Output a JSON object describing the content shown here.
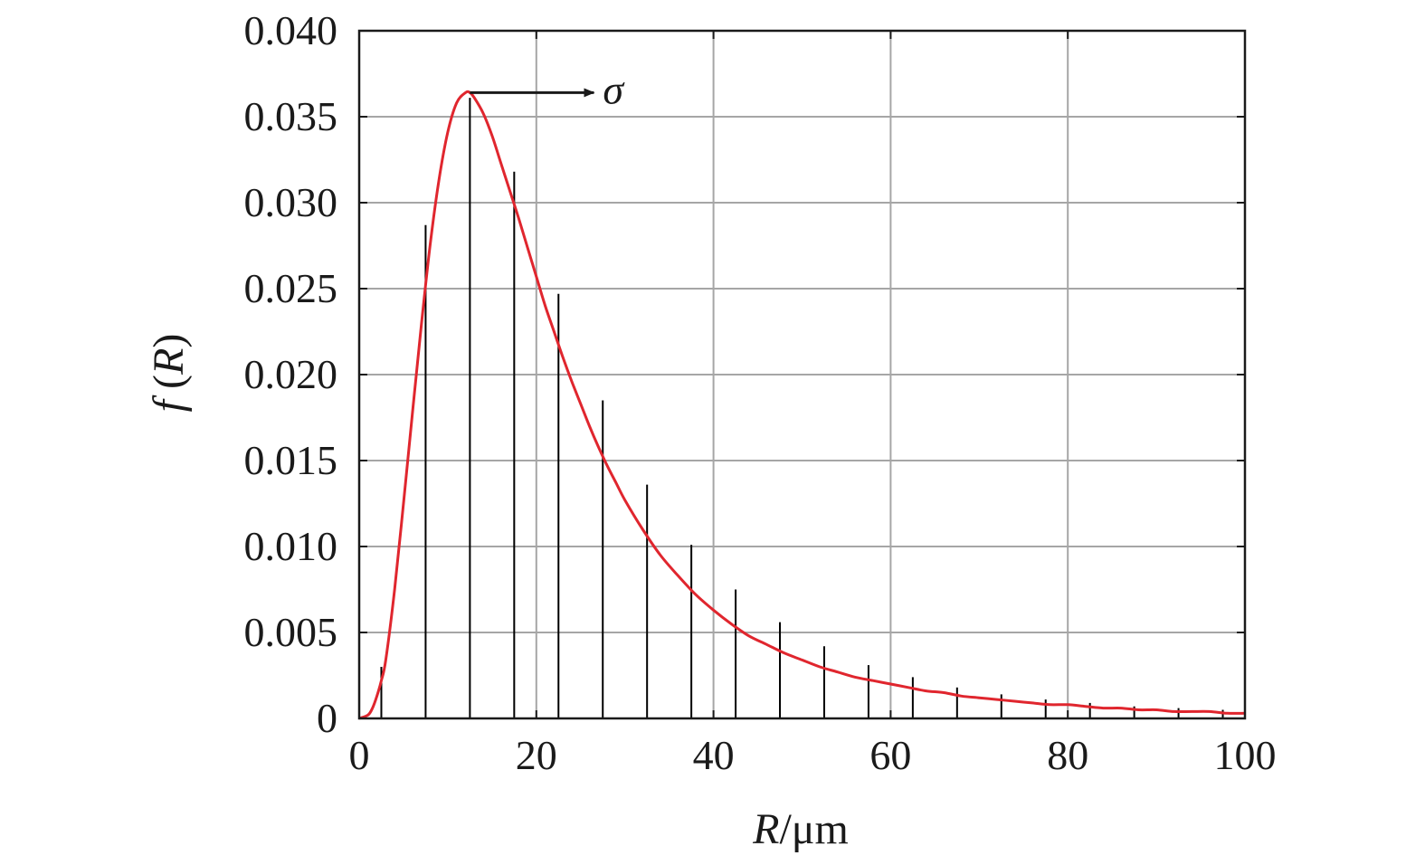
{
  "chart_data": {
    "type": "line",
    "title": "",
    "xlabel": {
      "var": "R",
      "unit": "/μm"
    },
    "ylabel": {
      "func": "f",
      "arg": "R",
      "open": " (",
      "close": ")"
    },
    "xlim": [
      0,
      100
    ],
    "ylim": [
      0,
      0.04
    ],
    "x_ticks": [
      0,
      20,
      40,
      60,
      80,
      100
    ],
    "x_tick_labels": [
      "0",
      "20",
      "40",
      "60",
      "80",
      "100"
    ],
    "y_ticks": [
      0,
      0.005,
      0.01,
      0.015,
      0.02,
      0.025,
      0.03,
      0.035,
      0.04
    ],
    "y_tick_labels": [
      "0",
      "0.005",
      "0.010",
      "0.015",
      "0.020",
      "0.025",
      "0.030",
      "0.035",
      "0.040"
    ],
    "grid": true,
    "legend": "none",
    "series": [
      {
        "kind": "curve",
        "color": "#e0262e",
        "x": [
          0,
          1,
          1.5,
          2,
          2.5,
          3,
          4,
          5,
          6,
          7,
          8,
          9,
          10,
          11,
          12,
          12.5,
          13,
          14,
          15,
          16,
          17,
          18,
          19,
          20,
          21,
          22,
          23,
          24,
          25,
          26,
          27,
          28,
          29,
          30,
          32,
          34,
          36,
          38,
          40,
          42,
          44,
          46,
          48,
          50,
          52,
          54,
          56,
          58,
          60,
          62,
          64,
          66,
          68,
          70,
          72,
          74,
          76,
          78,
          80,
          82,
          84,
          86,
          88,
          90,
          92,
          94,
          96,
          98,
          100
        ],
        "y": [
          0,
          0.0002,
          0.0006,
          0.0013,
          0.0022,
          0.0034,
          0.0075,
          0.0125,
          0.0177,
          0.0228,
          0.0275,
          0.0313,
          0.0341,
          0.0358,
          0.0364,
          0.0364,
          0.0361,
          0.0352,
          0.0339,
          0.0323,
          0.0307,
          0.0291,
          0.0274,
          0.0257,
          0.024,
          0.0225,
          0.021,
          0.0196,
          0.0183,
          0.017,
          0.0158,
          0.0147,
          0.0137,
          0.0127,
          0.011,
          0.0095,
          0.0083,
          0.0072,
          0.0063,
          0.0055,
          0.0048,
          0.0043,
          0.0038,
          0.0034,
          0.003,
          0.0027,
          0.0024,
          0.0022,
          0.002,
          0.0018,
          0.0016,
          0.0015,
          0.0013,
          0.0012,
          0.0011,
          0.001,
          0.0009,
          0.0008,
          0.0008,
          0.0007,
          0.0006,
          0.0006,
          0.0005,
          0.0005,
          0.0004,
          0.0004,
          0.0004,
          0.0003,
          0.0003
        ]
      },
      {
        "kind": "stem",
        "color": "#000000",
        "x": [
          2.5,
          7.5,
          12.5,
          17.5,
          22.5,
          27.5,
          32.5,
          37.5,
          42.5,
          47.5,
          52.5,
          57.5,
          62.5,
          67.5,
          72.5,
          77.5,
          82.5,
          87.5,
          92.5,
          97.5
        ],
        "y": [
          0.003,
          0.0287,
          0.0361,
          0.0318,
          0.0247,
          0.0185,
          0.0136,
          0.0101,
          0.0075,
          0.0056,
          0.0042,
          0.0031,
          0.0024,
          0.0018,
          0.0014,
          0.0011,
          0.0009,
          0.0007,
          0.0006,
          0.0005
        ]
      }
    ],
    "annotations": [
      {
        "text": "σ",
        "arrow_from": [
          12.5,
          0.0364
        ],
        "arrow_to": [
          26.5,
          0.0364
        ]
      }
    ]
  }
}
